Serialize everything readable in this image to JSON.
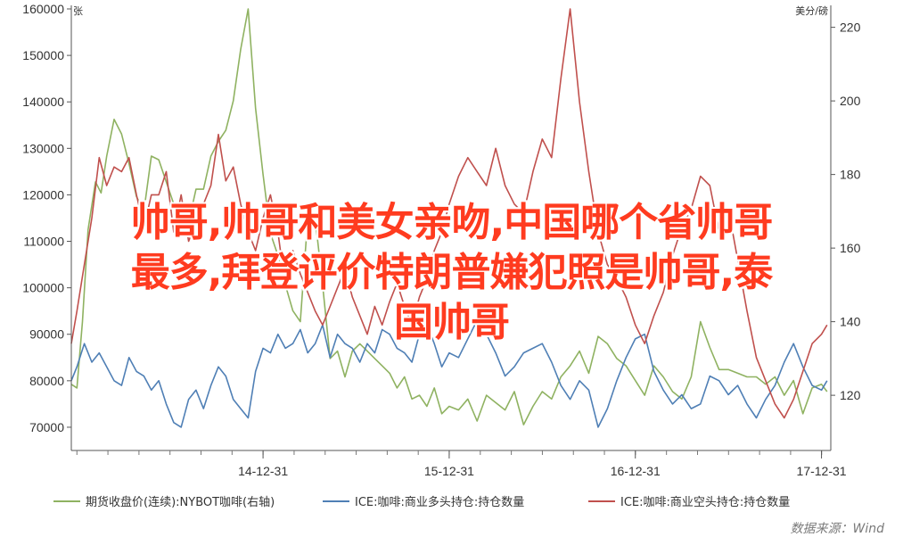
{
  "overlay": {
    "line1": "帅哥,帅哥和美女亲吻,中国哪个省帅哥",
    "line2": "最多,拜登评价特朗普嫌犯照是帅哥,泰",
    "line3": "国帅哥"
  },
  "chart_data": {
    "type": "line",
    "left_unit": "张",
    "right_unit": "美分/磅",
    "left_ylim": [
      65000,
      160000
    ],
    "left_ticks": [
      "70000",
      "80000",
      "90000",
      "100000",
      "110000",
      "120000",
      "130000",
      "140000",
      "150000",
      "160000"
    ],
    "right_ylim": [
      105,
      225
    ],
    "right_ticks": [
      "120",
      "140",
      "160",
      "180",
      "200",
      "220"
    ],
    "x_ticks": [
      "14-12-31",
      "15-12-31",
      "16-12-31",
      "17-12-31"
    ],
    "x_tick_positions": [
      2014.0,
      2015.0,
      2016.0,
      2017.0
    ],
    "x_range": [
      2012.97,
      2017.05
    ],
    "colors": {
      "green": "#8fb261",
      "blue": "#4f7fb5",
      "red": "#c0504d"
    },
    "series": [
      {
        "name": "期货收盘价(连续):NYBOT咖啡(右轴)",
        "axis": "right",
        "color": "#8fb261",
        "x": [
          2012.97,
          2013.0,
          2013.03,
          2013.06,
          2013.1,
          2013.13,
          2013.16,
          2013.2,
          2013.24,
          2013.28,
          2013.32,
          2013.36,
          2013.4,
          2013.44,
          2013.48,
          2013.52,
          2013.56,
          2013.6,
          2013.64,
          2013.68,
          2013.72,
          2013.76,
          2013.8,
          2013.84,
          2013.88,
          2013.92,
          2013.96,
          2014.0,
          2014.04,
          2014.08,
          2014.12,
          2014.16,
          2014.2,
          2014.24,
          2014.28,
          2014.32,
          2014.36,
          2014.4,
          2014.44,
          2014.48,
          2014.52,
          2014.56,
          2014.6,
          2014.64,
          2014.68,
          2014.72,
          2014.76,
          2014.8,
          2014.84,
          2014.88,
          2014.92,
          2014.96,
          2015.0,
          2015.05,
          2015.1,
          2015.15,
          2015.2,
          2015.25,
          2015.3,
          2015.35,
          2015.4,
          2015.45,
          2015.5,
          2015.55,
          2015.6,
          2015.65,
          2015.7,
          2015.75,
          2015.8,
          2015.85,
          2015.9,
          2015.95,
          2016.0,
          2016.05,
          2016.1,
          2016.15,
          2016.2,
          2016.25,
          2016.3,
          2016.35,
          2016.4,
          2016.45,
          2016.5,
          2016.55,
          2016.6,
          2016.65,
          2016.7,
          2016.75,
          2016.8,
          2016.85,
          2016.9,
          2016.95,
          2017.0,
          2017.03
        ],
        "values": [
          123,
          122,
          140,
          165,
          178,
          175,
          185,
          195,
          191,
          183,
          174,
          170,
          185,
          184,
          178,
          172,
          168,
          167,
          176,
          176,
          185,
          189,
          192,
          200,
          214,
          225,
          198,
          180,
          164,
          158,
          150,
          143,
          140,
          168,
          168,
          150,
          130,
          132,
          125,
          132,
          134,
          132,
          130,
          128,
          126,
          122,
          125,
          119,
          120,
          117,
          122,
          115,
          117,
          116,
          119,
          113,
          120,
          118,
          116,
          121,
          112,
          117,
          121,
          119,
          125,
          128,
          132,
          126,
          136,
          134,
          130,
          128,
          124,
          120,
          128,
          125,
          121,
          119,
          125,
          140,
          133,
          127,
          127,
          126,
          125,
          125,
          123,
          125,
          120,
          124,
          115,
          122,
          123,
          121
        ]
      },
      {
        "name": "ICE:咖啡:商业多头持仓:持仓数量",
        "axis": "left",
        "color": "#4f7fb5",
        "x": [
          2012.97,
          2013.0,
          2013.04,
          2013.08,
          2013.12,
          2013.16,
          2013.2,
          2013.24,
          2013.28,
          2013.32,
          2013.36,
          2013.4,
          2013.44,
          2013.48,
          2013.52,
          2013.56,
          2013.6,
          2013.64,
          2013.68,
          2013.72,
          2013.76,
          2013.8,
          2013.84,
          2013.88,
          2013.92,
          2013.96,
          2014.0,
          2014.04,
          2014.08,
          2014.12,
          2014.16,
          2014.2,
          2014.24,
          2014.28,
          2014.32,
          2014.36,
          2014.4,
          2014.44,
          2014.48,
          2014.52,
          2014.56,
          2014.6,
          2014.64,
          2014.68,
          2014.72,
          2014.76,
          2014.8,
          2014.84,
          2014.88,
          2014.92,
          2014.96,
          2015.0,
          2015.05,
          2015.1,
          2015.15,
          2015.2,
          2015.25,
          2015.3,
          2015.35,
          2015.4,
          2015.45,
          2015.5,
          2015.55,
          2015.6,
          2015.65,
          2015.7,
          2015.75,
          2015.8,
          2015.85,
          2015.9,
          2015.95,
          2016.0,
          2016.05,
          2016.1,
          2016.15,
          2016.2,
          2016.25,
          2016.3,
          2016.35,
          2016.4,
          2016.45,
          2016.5,
          2016.55,
          2016.6,
          2016.65,
          2016.7,
          2016.75,
          2016.8,
          2016.85,
          2016.9,
          2016.95,
          2017.0,
          2017.03
        ],
        "values": [
          80000,
          83000,
          88000,
          84000,
          86000,
          83000,
          80000,
          79000,
          85000,
          82000,
          81000,
          78000,
          80000,
          75000,
          71000,
          70000,
          76000,
          78000,
          74000,
          79000,
          83000,
          81000,
          76000,
          74000,
          72000,
          82000,
          87000,
          86000,
          90000,
          87000,
          88000,
          91000,
          86000,
          88000,
          92000,
          85000,
          90000,
          88000,
          87000,
          84000,
          88000,
          86000,
          91000,
          90000,
          87000,
          86000,
          84000,
          90000,
          92000,
          88000,
          83000,
          86000,
          85000,
          89000,
          93000,
          90000,
          86000,
          81000,
          83000,
          86000,
          87000,
          88000,
          84000,
          79000,
          76000,
          80000,
          78000,
          70000,
          74000,
          80000,
          85000,
          89000,
          90000,
          82000,
          78000,
          75000,
          77000,
          74000,
          75000,
          81000,
          80000,
          77000,
          79000,
          75000,
          72000,
          76000,
          79000,
          84000,
          88000,
          83000,
          79000,
          78000,
          80000
        ]
      },
      {
        "name": "ICE:咖啡:商业空头持仓:持仓数量",
        "axis": "left",
        "color": "#c0504d",
        "x": [
          2012.97,
          2013.0,
          2013.04,
          2013.08,
          2013.12,
          2013.16,
          2013.2,
          2013.24,
          2013.28,
          2013.32,
          2013.36,
          2013.4,
          2013.44,
          2013.48,
          2013.52,
          2013.56,
          2013.6,
          2013.64,
          2013.68,
          2013.72,
          2013.76,
          2013.8,
          2013.84,
          2013.88,
          2013.92,
          2013.96,
          2014.0,
          2014.04,
          2014.08,
          2014.12,
          2014.16,
          2014.2,
          2014.24,
          2014.28,
          2014.32,
          2014.36,
          2014.4,
          2014.44,
          2014.48,
          2014.52,
          2014.56,
          2014.6,
          2014.64,
          2014.68,
          2014.72,
          2014.76,
          2014.8,
          2014.84,
          2014.88,
          2014.92,
          2014.96,
          2015.0,
          2015.05,
          2015.1,
          2015.15,
          2015.2,
          2015.25,
          2015.3,
          2015.35,
          2015.4,
          2015.45,
          2015.5,
          2015.55,
          2015.6,
          2015.65,
          2015.7,
          2015.75,
          2015.8,
          2015.85,
          2015.9,
          2015.95,
          2016.0,
          2016.05,
          2016.1,
          2016.15,
          2016.2,
          2016.25,
          2016.3,
          2016.35,
          2016.4,
          2016.45,
          2016.5,
          2016.55,
          2016.6,
          2016.65,
          2016.7,
          2016.75,
          2016.8,
          2016.85,
          2016.9,
          2016.95,
          2017.0,
          2017.03
        ],
        "values": [
          88000,
          95000,
          105000,
          115000,
          128000,
          122000,
          126000,
          125000,
          128000,
          120000,
          113000,
          120000,
          120000,
          125000,
          112000,
          120000,
          110000,
          114000,
          118000,
          122000,
          133000,
          123000,
          126000,
          118000,
          112000,
          108000,
          115000,
          120000,
          112000,
          100000,
          108000,
          103000,
          99000,
          95000,
          92000,
          96000,
          100000,
          104000,
          98000,
          94000,
          90000,
          96000,
          92000,
          97000,
          101000,
          96000,
          92000,
          98000,
          102000,
          108000,
          112000,
          118000,
          124000,
          128000,
          125000,
          122000,
          130000,
          122000,
          118000,
          116000,
          125000,
          132000,
          128000,
          145000,
          160000,
          140000,
          125000,
          112000,
          105000,
          102000,
          98000,
          92000,
          88000,
          94000,
          99000,
          107000,
          113000,
          117000,
          124000,
          122000,
          112000,
          117000,
          106000,
          95000,
          85000,
          80000,
          75000,
          72000,
          76000,
          82000,
          88000,
          90000,
          92000
        ]
      }
    ],
    "legend": [
      {
        "label": "期货收盘价(连续):NYBOT咖啡(右轴)",
        "color": "#8fb261"
      },
      {
        "label": "ICE:咖啡:商业多头持仓:持仓数量",
        "color": "#4f7fb5"
      },
      {
        "label": "ICE:咖啡:商业空头持仓:持仓数量",
        "color": "#c0504d"
      }
    ],
    "legend_placement": "bottom",
    "grid": false
  },
  "source": "数据来源：Wind"
}
